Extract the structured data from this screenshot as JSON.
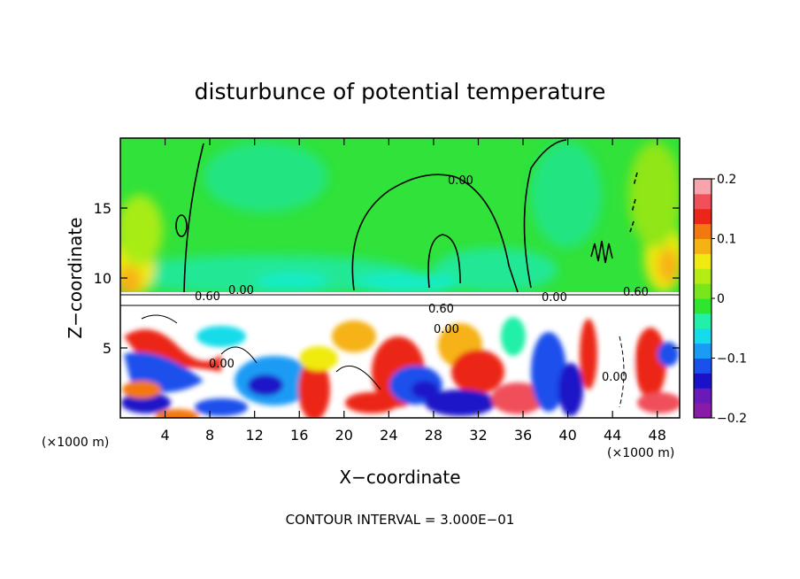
{
  "chart_data": {
    "type": "heatmap",
    "title": "disturbunce of potential temperature",
    "xlabel": "X−coordinate",
    "ylabel": "Z−coordinate",
    "x_unit": "(×1000 m)",
    "x_unit_right": "(×1000 m)",
    "xlim": [
      0,
      50
    ],
    "ylim": [
      0,
      20
    ],
    "x_ticks": [
      4,
      8,
      12,
      16,
      20,
      24,
      28,
      32,
      36,
      40,
      44,
      48
    ],
    "x_tick_labels": [
      "4",
      "8",
      "12",
      "16",
      "20",
      "24",
      "28",
      "32",
      "36",
      "40",
      "44",
      "48"
    ],
    "y_ticks": [
      5,
      10,
      15
    ],
    "y_tick_labels": [
      "5",
      "10",
      "15"
    ],
    "colorbar": {
      "range": [
        -0.2,
        0.2
      ],
      "ticks": [
        0.2,
        0.1,
        0,
        -0.1,
        -0.2
      ],
      "tick_labels": [
        "0.2",
        "0.1",
        "0",
        "−0.1",
        "−0.2"
      ],
      "colors": [
        "#8a1aa8",
        "#6a1ab8",
        "#1a12c8",
        "#1a50ec",
        "#1a9bf5",
        "#14dcea",
        "#23f0a8",
        "#2ee62e",
        "#78e61c",
        "#b4ec14",
        "#f0ea10",
        "#f6b212",
        "#f47810",
        "#ec2618",
        "#f0505a",
        "#f7a4ac"
      ]
    },
    "contour_labels": [
      "0.60",
      "0.00",
      "0.60",
      "0.00",
      "0.00",
      "0.60",
      "0.00",
      "0.00",
      "0.00"
    ],
    "footer": "CONTOUR INTERVAL = 3.000E−01"
  }
}
